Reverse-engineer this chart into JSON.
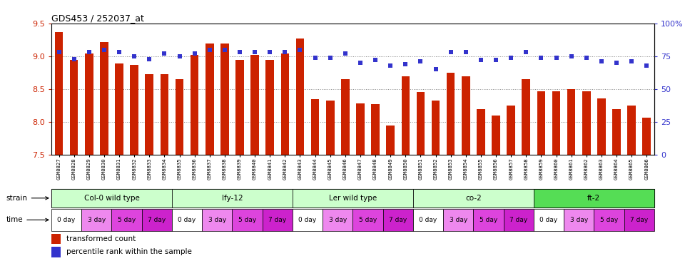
{
  "title": "GDS453 / 252037_at",
  "samples": [
    "GSM8827",
    "GSM8828",
    "GSM8829",
    "GSM8830",
    "GSM8831",
    "GSM8832",
    "GSM8833",
    "GSM8834",
    "GSM8835",
    "GSM8836",
    "GSM8837",
    "GSM8838",
    "GSM8839",
    "GSM8840",
    "GSM8841",
    "GSM8842",
    "GSM8843",
    "GSM8844",
    "GSM8845",
    "GSM8846",
    "GSM8847",
    "GSM8848",
    "GSM8849",
    "GSM8850",
    "GSM8851",
    "GSM8852",
    "GSM8853",
    "GSM8854",
    "GSM8855",
    "GSM8856",
    "GSM8857",
    "GSM8858",
    "GSM8859",
    "GSM8860",
    "GSM8861",
    "GSM8862",
    "GSM8863",
    "GSM8864",
    "GSM8865",
    "GSM8866"
  ],
  "bar_values": [
    9.37,
    8.95,
    9.04,
    9.22,
    8.89,
    8.87,
    8.73,
    8.73,
    8.65,
    9.02,
    9.19,
    9.19,
    8.95,
    9.02,
    8.95,
    9.04,
    9.27,
    8.35,
    8.33,
    8.65,
    8.28,
    8.27,
    7.95,
    8.7,
    8.46,
    8.33,
    8.75,
    8.7,
    8.2,
    8.1,
    8.25,
    8.65,
    8.47,
    8.47,
    8.5,
    8.47,
    8.36,
    8.2,
    8.25,
    8.07
  ],
  "dot_values": [
    78,
    73,
    78,
    80,
    78,
    75,
    73,
    77,
    75,
    77,
    80,
    80,
    78,
    78,
    78,
    78,
    80,
    74,
    74,
    77,
    70,
    72,
    68,
    69,
    71,
    65,
    78,
    78,
    72,
    72,
    74,
    78,
    74,
    74,
    75,
    74,
    71,
    70,
    71,
    68
  ],
  "ylim_left": [
    7.5,
    9.5
  ],
  "ylim_right": [
    0,
    100
  ],
  "yticks_left": [
    7.5,
    8.0,
    8.5,
    9.0,
    9.5
  ],
  "yticks_right": [
    0,
    25,
    50,
    75,
    100
  ],
  "ytick_labels_right": [
    "0",
    "25",
    "50",
    "75",
    "100%"
  ],
  "bar_color": "#CC2200",
  "dot_color": "#3333CC",
  "strains": [
    {
      "label": "Col-0 wild type",
      "start": 0,
      "end": 8,
      "color": "#CCFFCC"
    },
    {
      "label": "lfy-12",
      "start": 8,
      "end": 16,
      "color": "#CCFFCC"
    },
    {
      "label": "Ler wild type",
      "start": 16,
      "end": 24,
      "color": "#CCFFCC"
    },
    {
      "label": "co-2",
      "start": 24,
      "end": 32,
      "color": "#CCFFCC"
    },
    {
      "label": "ft-2",
      "start": 32,
      "end": 40,
      "color": "#55DD55"
    }
  ],
  "times": [
    "0 day",
    "3 day",
    "5 day",
    "7 day"
  ],
  "time_colors": [
    "#FFFFFF",
    "#EE88EE",
    "#DD44DD",
    "#CC22CC"
  ],
  "n_bars": 40,
  "background_color": "#FFFFFF"
}
